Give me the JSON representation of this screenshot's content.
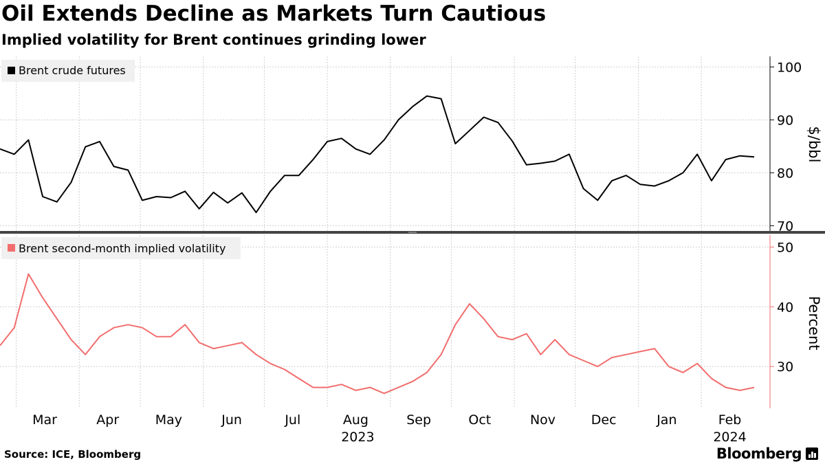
{
  "title": "Oil Extends Decline as Markets Turn Cautious",
  "subtitle": "Implied volatility for Brent continues grinding lower",
  "source": "Source: ICE, Bloomberg",
  "brand": "Bloomberg",
  "colors": {
    "oil": "#000000",
    "vol": "#f26d6d",
    "grid": "#cfcfcf",
    "legend_bg": "#f0f0f0"
  },
  "chart_data": [
    {
      "type": "line",
      "panel": "top",
      "series": [
        {
          "name": "Brent crude futures"
        }
      ],
      "ylabel": "$/bbl",
      "ylim": [
        69,
        102
      ],
      "yticks": [
        70,
        80,
        90,
        100
      ],
      "ytick_labels": [
        "70",
        "80",
        "90",
        "100"
      ],
      "x": [
        "2023-02-21",
        "2023-02-28",
        "2023-03-07",
        "2023-03-14",
        "2023-03-21",
        "2023-03-28",
        "2023-04-04",
        "2023-04-11",
        "2023-04-18",
        "2023-04-25",
        "2023-05-02",
        "2023-05-09",
        "2023-05-16",
        "2023-05-23",
        "2023-05-30",
        "2023-06-06",
        "2023-06-13",
        "2023-06-20",
        "2023-06-27",
        "2023-07-04",
        "2023-07-11",
        "2023-07-18",
        "2023-07-25",
        "2023-08-01",
        "2023-08-08",
        "2023-08-15",
        "2023-08-22",
        "2023-08-29",
        "2023-09-05",
        "2023-09-12",
        "2023-09-19",
        "2023-09-26",
        "2023-10-03",
        "2023-10-10",
        "2023-10-17",
        "2023-10-24",
        "2023-10-31",
        "2023-11-07",
        "2023-11-14",
        "2023-11-21",
        "2023-11-28",
        "2023-12-05",
        "2023-12-12",
        "2023-12-19",
        "2023-12-26",
        "2024-01-02",
        "2024-01-09",
        "2024-01-16",
        "2024-01-23",
        "2024-01-30",
        "2024-02-06",
        "2024-02-13",
        "2024-02-20",
        "2024-02-27"
      ],
      "values": [
        84.5,
        83.5,
        86.2,
        75.5,
        74.5,
        78.2,
        84.9,
        85.9,
        81.2,
        80.5,
        74.8,
        75.5,
        75.3,
        76.5,
        73.2,
        76.3,
        74.3,
        76.2,
        72.5,
        76.5,
        79.5,
        79.5,
        82.5,
        85.9,
        86.5,
        84.5,
        83.5,
        86.2,
        90.0,
        92.5,
        94.5,
        94.0,
        85.5,
        88.0,
        90.5,
        89.5,
        86.0,
        81.5,
        81.8,
        82.2,
        83.5,
        77.0,
        74.8,
        78.5,
        79.5,
        77.8,
        77.5,
        78.5,
        80.0,
        83.5,
        78.5,
        82.5,
        83.2,
        83.0
      ]
    },
    {
      "type": "line",
      "panel": "bottom",
      "series": [
        {
          "name": "Brent second-month implied volatility"
        }
      ],
      "ylabel": "Percent",
      "ylim": [
        23,
        52
      ],
      "yticks": [
        30,
        40,
        50
      ],
      "ytick_labels": [
        "30",
        "40",
        "50"
      ],
      "xlabels": [
        "Mar",
        "Apr",
        "May",
        "Jun",
        "Jul",
        "Aug",
        "Sep",
        "Oct",
        "Nov",
        "Dec",
        "Jan",
        "Feb"
      ],
      "xlabel_dates": [
        "2023-03-15",
        "2023-04-15",
        "2023-05-15",
        "2023-06-15",
        "2023-07-15",
        "2023-08-15",
        "2023-09-15",
        "2023-10-15",
        "2023-11-15",
        "2023-12-15",
        "2024-01-15",
        "2024-02-15"
      ],
      "year_labels": [
        "2023",
        "2024"
      ],
      "year_label_dates": [
        "2023-08-16",
        "2024-02-15"
      ],
      "x": [
        "2023-02-21",
        "2023-02-28",
        "2023-03-07",
        "2023-03-14",
        "2023-03-21",
        "2023-03-28",
        "2023-04-04",
        "2023-04-11",
        "2023-04-18",
        "2023-04-25",
        "2023-05-02",
        "2023-05-09",
        "2023-05-16",
        "2023-05-23",
        "2023-05-30",
        "2023-06-06",
        "2023-06-13",
        "2023-06-20",
        "2023-06-27",
        "2023-07-04",
        "2023-07-11",
        "2023-07-18",
        "2023-07-25",
        "2023-08-01",
        "2023-08-08",
        "2023-08-15",
        "2023-08-22",
        "2023-08-29",
        "2023-09-05",
        "2023-09-12",
        "2023-09-19",
        "2023-09-26",
        "2023-10-03",
        "2023-10-10",
        "2023-10-17",
        "2023-10-24",
        "2023-10-31",
        "2023-11-07",
        "2023-11-14",
        "2023-11-21",
        "2023-11-28",
        "2023-12-05",
        "2023-12-12",
        "2023-12-19",
        "2023-12-26",
        "2024-01-02",
        "2024-01-09",
        "2024-01-16",
        "2024-01-23",
        "2024-01-30",
        "2024-02-06",
        "2024-02-13",
        "2024-02-20",
        "2024-02-27"
      ],
      "values": [
        33.5,
        36.5,
        45.5,
        41.5,
        38.0,
        34.5,
        32.0,
        35.0,
        36.5,
        37.0,
        36.5,
        35.0,
        35.0,
        37.0,
        34.0,
        33.0,
        33.5,
        34.0,
        32.0,
        30.5,
        29.5,
        28.0,
        26.5,
        26.5,
        27.0,
        26.0,
        26.5,
        25.5,
        26.5,
        27.5,
        29.0,
        32.0,
        37.0,
        40.5,
        38.0,
        35.0,
        34.5,
        35.5,
        32.0,
        34.5,
        32.0,
        31.0,
        30.0,
        31.5,
        32.0,
        32.5,
        33.0,
        30.0,
        29.0,
        30.5,
        28.0,
        26.5,
        26.0,
        26.5
      ]
    }
  ]
}
